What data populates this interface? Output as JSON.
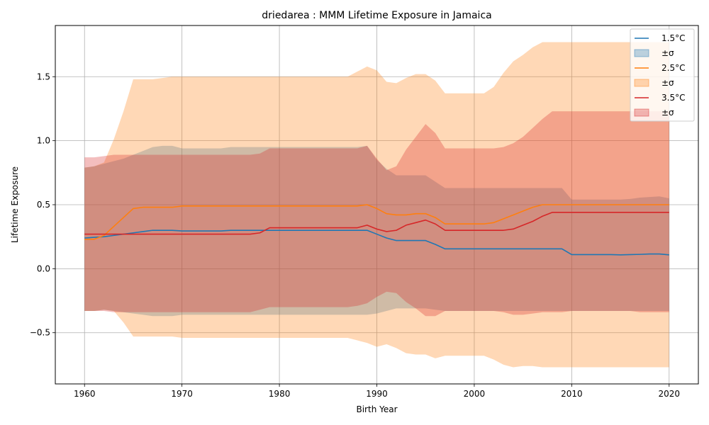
{
  "chart_data": {
    "type": "line",
    "title": "driedarea : MMM Lifetime Exposure in Jamaica",
    "xlabel": "Birth Year",
    "ylabel": "Lifetime Exposure",
    "xlim": [
      1957,
      2023
    ],
    "ylim": [
      -0.9,
      1.9
    ],
    "x_ticks": [
      1960,
      1970,
      1980,
      1990,
      2000,
      2010,
      2020
    ],
    "y_ticks": [
      -0.5,
      0.0,
      0.5,
      1.0,
      1.5
    ],
    "y_tick_labels": [
      "−0.5",
      "0.0",
      "0.5",
      "1.0",
      "1.5"
    ],
    "grid": true,
    "legend_position": "upper right",
    "x": [
      1960,
      1961,
      1962,
      1963,
      1964,
      1965,
      1966,
      1967,
      1968,
      1969,
      1970,
      1971,
      1972,
      1973,
      1974,
      1975,
      1976,
      1977,
      1978,
      1979,
      1980,
      1981,
      1982,
      1983,
      1984,
      1985,
      1986,
      1987,
      1988,
      1989,
      1990,
      1991,
      1992,
      1993,
      1994,
      1995,
      1996,
      1997,
      1998,
      1999,
      2000,
      2001,
      2002,
      2003,
      2004,
      2005,
      2006,
      2007,
      2008,
      2009,
      2010,
      2011,
      2012,
      2013,
      2014,
      2015,
      2016,
      2017,
      2018,
      2019,
      2020
    ],
    "series": [
      {
        "name": "1.5°C",
        "band_label": "±σ",
        "color": "#1f77b4",
        "band_color": "#1f77b4",
        "band_opacity": 0.3,
        "mean": [
          0.24,
          0.245,
          0.25,
          0.26,
          0.27,
          0.28,
          0.29,
          0.3,
          0.3,
          0.3,
          0.295,
          0.295,
          0.295,
          0.295,
          0.295,
          0.3,
          0.3,
          0.3,
          0.3,
          0.3,
          0.3,
          0.3,
          0.3,
          0.3,
          0.3,
          0.3,
          0.3,
          0.3,
          0.3,
          0.3,
          0.27,
          0.24,
          0.22,
          0.22,
          0.22,
          0.22,
          0.19,
          0.155,
          0.155,
          0.155,
          0.155,
          0.155,
          0.155,
          0.155,
          0.155,
          0.155,
          0.155,
          0.155,
          0.155,
          0.155,
          0.11,
          0.11,
          0.11,
          0.11,
          0.11,
          0.108,
          0.11,
          0.112,
          0.115,
          0.115,
          0.108
        ],
        "upper": [
          0.79,
          0.8,
          0.82,
          0.84,
          0.86,
          0.89,
          0.92,
          0.95,
          0.96,
          0.96,
          0.94,
          0.94,
          0.94,
          0.94,
          0.94,
          0.95,
          0.95,
          0.95,
          0.95,
          0.95,
          0.95,
          0.95,
          0.95,
          0.95,
          0.95,
          0.95,
          0.95,
          0.95,
          0.95,
          0.96,
          0.85,
          0.78,
          0.73,
          0.73,
          0.73,
          0.73,
          0.68,
          0.63,
          0.63,
          0.63,
          0.63,
          0.63,
          0.63,
          0.63,
          0.63,
          0.63,
          0.63,
          0.63,
          0.63,
          0.63,
          0.54,
          0.54,
          0.54,
          0.54,
          0.54,
          0.54,
          0.545,
          0.555,
          0.56,
          0.565,
          0.55
        ],
        "lower": [
          -0.33,
          -0.33,
          -0.32,
          -0.33,
          -0.34,
          -0.35,
          -0.36,
          -0.37,
          -0.37,
          -0.37,
          -0.36,
          -0.36,
          -0.36,
          -0.36,
          -0.36,
          -0.36,
          -0.36,
          -0.36,
          -0.36,
          -0.36,
          -0.36,
          -0.36,
          -0.36,
          -0.36,
          -0.36,
          -0.36,
          -0.36,
          -0.36,
          -0.36,
          -0.36,
          -0.35,
          -0.33,
          -0.31,
          -0.31,
          -0.31,
          -0.31,
          -0.32,
          -0.33,
          -0.33,
          -0.33,
          -0.33,
          -0.33,
          -0.33,
          -0.33,
          -0.33,
          -0.33,
          -0.33,
          -0.33,
          -0.33,
          -0.33,
          -0.33,
          -0.33,
          -0.33,
          -0.33,
          -0.33,
          -0.33,
          -0.33,
          -0.33,
          -0.33,
          -0.33,
          -0.33
        ]
      },
      {
        "name": "2.5°C",
        "band_label": "±σ",
        "color": "#ff7f0e",
        "band_color": "#ff7f0e",
        "band_opacity": 0.3,
        "mean": [
          0.23,
          0.23,
          0.26,
          0.33,
          0.4,
          0.47,
          0.48,
          0.48,
          0.48,
          0.48,
          0.49,
          0.49,
          0.49,
          0.49,
          0.49,
          0.49,
          0.49,
          0.49,
          0.49,
          0.49,
          0.49,
          0.49,
          0.49,
          0.49,
          0.49,
          0.49,
          0.49,
          0.49,
          0.49,
          0.5,
          0.47,
          0.43,
          0.42,
          0.42,
          0.43,
          0.43,
          0.4,
          0.35,
          0.35,
          0.35,
          0.35,
          0.35,
          0.36,
          0.39,
          0.42,
          0.45,
          0.48,
          0.5,
          0.5,
          0.5,
          0.5,
          0.5,
          0.5,
          0.5,
          0.5,
          0.5,
          0.5,
          0.5,
          0.5,
          0.5,
          0.5
        ],
        "upper": [
          0.79,
          0.8,
          0.83,
          1.01,
          1.23,
          1.48,
          1.48,
          1.48,
          1.49,
          1.5,
          1.5,
          1.5,
          1.5,
          1.5,
          1.5,
          1.5,
          1.5,
          1.5,
          1.5,
          1.5,
          1.5,
          1.5,
          1.5,
          1.5,
          1.5,
          1.5,
          1.5,
          1.5,
          1.54,
          1.58,
          1.55,
          1.46,
          1.45,
          1.49,
          1.52,
          1.52,
          1.47,
          1.37,
          1.37,
          1.37,
          1.37,
          1.37,
          1.42,
          1.53,
          1.62,
          1.67,
          1.73,
          1.77,
          1.77,
          1.77,
          1.77,
          1.77,
          1.77,
          1.77,
          1.77,
          1.77,
          1.77,
          1.77,
          1.77,
          1.77,
          1.77
        ],
        "lower": [
          -0.33,
          -0.33,
          -0.32,
          -0.33,
          -0.42,
          -0.53,
          -0.53,
          -0.53,
          -0.53,
          -0.53,
          -0.54,
          -0.54,
          -0.54,
          -0.54,
          -0.54,
          -0.54,
          -0.54,
          -0.54,
          -0.54,
          -0.54,
          -0.54,
          -0.54,
          -0.54,
          -0.54,
          -0.54,
          -0.54,
          -0.54,
          -0.54,
          -0.56,
          -0.58,
          -0.61,
          -0.59,
          -0.62,
          -0.66,
          -0.67,
          -0.67,
          -0.7,
          -0.68,
          -0.68,
          -0.68,
          -0.68,
          -0.68,
          -0.71,
          -0.75,
          -0.77,
          -0.76,
          -0.76,
          -0.77,
          -0.77,
          -0.77,
          -0.77,
          -0.77,
          -0.77,
          -0.77,
          -0.77,
          -0.77,
          -0.77,
          -0.77,
          -0.77,
          -0.77,
          -0.77
        ]
      },
      {
        "name": "3.5°C",
        "band_label": "±σ",
        "color": "#d62728",
        "band_color": "#d62728",
        "band_opacity": 0.3,
        "mean": [
          0.27,
          0.27,
          0.27,
          0.27,
          0.27,
          0.27,
          0.27,
          0.27,
          0.27,
          0.27,
          0.27,
          0.27,
          0.27,
          0.27,
          0.27,
          0.27,
          0.27,
          0.27,
          0.28,
          0.32,
          0.32,
          0.32,
          0.32,
          0.32,
          0.32,
          0.32,
          0.32,
          0.32,
          0.32,
          0.34,
          0.31,
          0.29,
          0.3,
          0.34,
          0.36,
          0.38,
          0.35,
          0.3,
          0.3,
          0.3,
          0.3,
          0.3,
          0.3,
          0.3,
          0.31,
          0.34,
          0.37,
          0.41,
          0.44,
          0.44,
          0.44,
          0.44,
          0.44,
          0.44,
          0.44,
          0.44,
          0.44,
          0.44,
          0.44,
          0.44,
          0.44
        ],
        "upper": [
          0.87,
          0.87,
          0.88,
          0.89,
          0.89,
          0.89,
          0.89,
          0.89,
          0.89,
          0.89,
          0.89,
          0.89,
          0.89,
          0.89,
          0.89,
          0.89,
          0.89,
          0.89,
          0.9,
          0.94,
          0.94,
          0.94,
          0.94,
          0.94,
          0.94,
          0.94,
          0.94,
          0.94,
          0.94,
          0.96,
          0.86,
          0.77,
          0.8,
          0.93,
          1.03,
          1.13,
          1.06,
          0.94,
          0.94,
          0.94,
          0.94,
          0.94,
          0.94,
          0.95,
          0.98,
          1.03,
          1.1,
          1.17,
          1.23,
          1.23,
          1.23,
          1.23,
          1.23,
          1.23,
          1.23,
          1.23,
          1.23,
          1.23,
          1.23,
          1.23,
          1.23
        ],
        "lower": [
          -0.33,
          -0.33,
          -0.33,
          -0.34,
          -0.34,
          -0.34,
          -0.34,
          -0.34,
          -0.34,
          -0.34,
          -0.34,
          -0.34,
          -0.34,
          -0.34,
          -0.34,
          -0.34,
          -0.34,
          -0.34,
          -0.32,
          -0.3,
          -0.3,
          -0.3,
          -0.3,
          -0.3,
          -0.3,
          -0.3,
          -0.3,
          -0.3,
          -0.29,
          -0.27,
          -0.22,
          -0.18,
          -0.19,
          -0.26,
          -0.31,
          -0.37,
          -0.37,
          -0.33,
          -0.33,
          -0.33,
          -0.33,
          -0.33,
          -0.33,
          -0.34,
          -0.36,
          -0.36,
          -0.35,
          -0.34,
          -0.34,
          -0.34,
          -0.33,
          -0.33,
          -0.33,
          -0.33,
          -0.33,
          -0.33,
          -0.33,
          -0.34,
          -0.34,
          -0.34,
          -0.34
        ]
      }
    ]
  }
}
